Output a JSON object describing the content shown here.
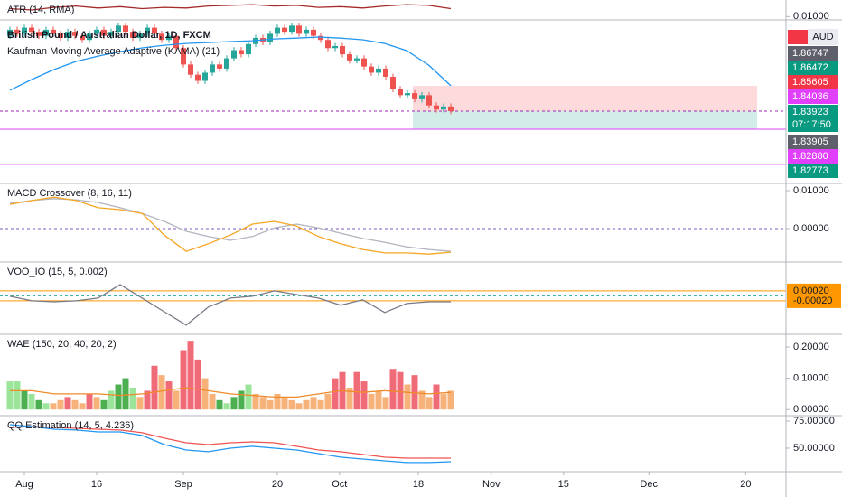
{
  "chart_data": [
    {
      "type": "line",
      "title": "ATR (14, RMA)",
      "ylim": [
        0.0095,
        0.0125
      ],
      "yticks": [
        {
          "value": 0.01,
          "label": "0.01000"
        }
      ],
      "series": [
        {
          "color": "#a52a2a",
          "values": [
            0.0112,
            0.011,
            0.0114,
            0.0116,
            0.0113,
            0.0115,
            0.0112,
            0.0114,
            0.0113,
            0.0116,
            0.0117,
            0.0118,
            0.0116,
            0.0117,
            0.0114,
            0.0115,
            0.0113,
            0.0116,
            0.0118,
            0.0117,
            0.0112
          ]
        }
      ]
    },
    {
      "type": "candlestick",
      "title": "British Pound / Australian Dollar, 1D, FXCM",
      "ylim": [
        1.8039,
        1.8838
      ],
      "up_color": "#26a69a",
      "down_color": "#ef5350",
      "open": [
        1.876,
        1.879,
        1.877,
        1.88,
        1.878,
        1.876,
        1.879,
        1.877,
        1.875,
        1.878,
        1.876,
        1.874,
        1.877,
        1.879,
        1.876,
        1.878,
        1.881,
        1.878,
        1.875,
        1.877,
        1.88,
        1.877,
        1.874,
        1.876,
        1.87,
        1.862,
        1.857,
        1.854,
        1.858,
        1.862,
        1.86,
        1.865,
        1.869,
        1.867,
        1.872,
        1.875,
        1.873,
        1.877,
        1.88,
        1.878,
        1.881,
        1.877,
        1.879,
        1.876,
        1.874,
        1.87,
        1.871,
        1.867,
        1.864,
        1.865,
        1.861,
        1.858,
        1.86,
        1.856,
        1.85,
        1.847,
        1.848,
        1.845,
        1.847,
        1.842,
        1.84,
        1.8415
      ],
      "high": [
        1.8805,
        1.8805,
        1.8815,
        1.8815,
        1.8795,
        1.8805,
        1.8805,
        1.8785,
        1.8795,
        1.8795,
        1.8775,
        1.8785,
        1.8805,
        1.8805,
        1.8795,
        1.8825,
        1.8825,
        1.8795,
        1.8785,
        1.8815,
        1.8815,
        1.8785,
        1.8775,
        1.8775,
        1.8715,
        1.8635,
        1.8585,
        1.8595,
        1.8635,
        1.8635,
        1.8665,
        1.8705,
        1.8705,
        1.8735,
        1.8765,
        1.8765,
        1.8785,
        1.8815,
        1.8815,
        1.8825,
        1.8825,
        1.8805,
        1.8805,
        1.8775,
        1.8755,
        1.8725,
        1.8725,
        1.8685,
        1.8665,
        1.8665,
        1.8625,
        1.8615,
        1.8615,
        1.8575,
        1.8515,
        1.8495,
        1.8495,
        1.8485,
        1.8485,
        1.8435,
        1.843,
        1.843
      ],
      "low": [
        1.8745,
        1.8755,
        1.8755,
        1.8765,
        1.8745,
        1.8745,
        1.8755,
        1.8735,
        1.8735,
        1.8745,
        1.8725,
        1.8725,
        1.8755,
        1.8745,
        1.8745,
        1.8765,
        1.8765,
        1.8735,
        1.8735,
        1.8755,
        1.8755,
        1.8725,
        1.8725,
        1.8685,
        1.8605,
        1.8555,
        1.8525,
        1.8525,
        1.8565,
        1.8585,
        1.8585,
        1.8635,
        1.8655,
        1.8655,
        1.8705,
        1.8715,
        1.8715,
        1.8755,
        1.8765,
        1.8765,
        1.8755,
        1.8755,
        1.8745,
        1.8725,
        1.8685,
        1.8685,
        1.8655,
        1.8625,
        1.8625,
        1.8595,
        1.8565,
        1.8565,
        1.8545,
        1.8485,
        1.8455,
        1.8455,
        1.8435,
        1.8435,
        1.8405,
        1.8385,
        1.8385,
        1.8377
      ],
      "close": [
        1.879,
        1.877,
        1.88,
        1.878,
        1.876,
        1.879,
        1.877,
        1.875,
        1.878,
        1.876,
        1.874,
        1.877,
        1.879,
        1.876,
        1.878,
        1.881,
        1.878,
        1.875,
        1.877,
        1.88,
        1.877,
        1.874,
        1.876,
        1.87,
        1.862,
        1.857,
        1.854,
        1.858,
        1.862,
        1.86,
        1.865,
        1.869,
        1.867,
        1.872,
        1.875,
        1.873,
        1.877,
        1.88,
        1.878,
        1.881,
        1.877,
        1.879,
        1.876,
        1.874,
        1.87,
        1.871,
        1.867,
        1.864,
        1.865,
        1.861,
        1.858,
        1.86,
        1.856,
        1.85,
        1.847,
        1.848,
        1.845,
        1.847,
        1.842,
        1.84,
        1.8415,
        1.8392
      ],
      "series": [
        {
          "name": "Kaufman Moving Average Adaptive (KAMA) (21)",
          "color": "#2196f3",
          "values": [
            1.8494,
            1.8547,
            1.8595,
            1.8635,
            1.8661,
            1.8683,
            1.8701,
            1.8714,
            1.8723,
            1.8727,
            1.8732,
            1.8736,
            1.8745,
            1.8749,
            1.8754,
            1.8749,
            1.8741,
            1.8723,
            1.8688,
            1.8617,
            1.8516
          ]
        }
      ],
      "hlines": [
        {
          "value": 1.83923,
          "color": "#9c27b0",
          "dashed": true
        },
        {
          "value": 1.8304,
          "color": "#e040fb",
          "dashed": false
        },
        {
          "value": 1.8132,
          "color": "#e040fb",
          "dashed": false
        }
      ],
      "position": {
        "stop": 1.8516,
        "entry": 1.83923,
        "target": 1.8304
      },
      "currency": "AUD",
      "countdown": "07:17:50",
      "price_labels": [
        {
          "value": 1.86747,
          "label": "1.86747",
          "color": "#5d606b"
        },
        {
          "value": 1.86472,
          "label": "1.86472",
          "color": "#089981"
        },
        {
          "value": 1.85605,
          "label": "1.85605",
          "color": "#f23645"
        },
        {
          "value": 1.84036,
          "label": "1.84036",
          "color": "#e040fb"
        },
        {
          "value": 1.83923,
          "label": "1.83923",
          "color": "#089981"
        },
        {
          "value": 1.83905,
          "label": "1.83905",
          "color": "#5d606b"
        },
        {
          "value": 1.8288,
          "label": "1.82880",
          "color": "#e040fb"
        },
        {
          "value": 1.82773,
          "label": "1.82773",
          "color": "#089981"
        }
      ],
      "xticks": [
        {
          "value": 2,
          "label": "Aug"
        },
        {
          "value": 12,
          "label": "16"
        },
        {
          "value": 24,
          "label": "Sep"
        },
        {
          "value": 37,
          "label": "20"
        },
        {
          "value": 45.6,
          "label": "Oct"
        },
        {
          "value": 56.5,
          "label": "18"
        },
        {
          "value": 66.6,
          "label": "Nov"
        },
        {
          "value": 76.6,
          "label": "15"
        },
        {
          "value": 88.4,
          "label": "Dec"
        },
        {
          "value": 101.8,
          "label": "20"
        }
      ]
    },
    {
      "type": "line",
      "title": "MACD Crossover (8, 16, 11)",
      "ylim": [
        -0.0088,
        0.0119
      ],
      "yticks": [
        {
          "value": 0.01,
          "label": "0.01000"
        },
        {
          "value": 0,
          "label": "0.00000"
        }
      ],
      "hlines": [
        {
          "value": 0,
          "color": "#7e57c2",
          "dashed": true
        }
      ],
      "series": [
        {
          "color": "#b2b5be",
          "values": [
            0.0067,
            0.0074,
            0.0079,
            0.0076,
            0.0069,
            0.0055,
            0.004,
            0.0019,
            -0.0007,
            -0.0021,
            -0.0031,
            -0.0021,
            0.0002,
            0.0012,
            0.0002,
            -0.0012,
            -0.0026,
            -0.0036,
            -0.0048,
            -0.0055,
            -0.006
          ]
        },
        {
          "color": "#f5a623",
          "values": [
            0.0064,
            0.0074,
            0.0083,
            0.0074,
            0.0055,
            0.005,
            0.004,
            -0.0017,
            -0.006,
            -0.004,
            -0.0017,
            0.0012,
            0.0019,
            0.0007,
            -0.0021,
            -0.004,
            -0.0055,
            -0.0064,
            -0.0064,
            -0.0067,
            -0.0062
          ]
        }
      ]
    },
    {
      "type": "line",
      "title": "VOO_IO (15, 5, 0.002)",
      "ylim": [
        -0.00155,
        0.00136
      ],
      "tick_color": "#ff9800",
      "yticks": [
        {
          "value": 0.0002,
          "label": "0.00020"
        },
        {
          "value": -0.0002,
          "label": "-0.00020"
        }
      ],
      "hlines": [
        {
          "value": 0,
          "color": "#26a69a",
          "dashed": true
        }
      ],
      "series": [
        {
          "color": "#787b86",
          "values": [
            -2e-05,
            -0.0002,
            -0.00024,
            -0.0002,
            -9e-05,
            0.00045,
            -9e-05,
            -0.00064,
            -0.00118,
            -0.00045,
            -9e-05,
            -2e-05,
            0.0002,
            5e-05,
            -9e-05,
            -0.00038,
            -0.00016,
            -0.00067,
            -0.00031,
            -0.00024,
            -0.00024
          ]
        }
      ]
    },
    {
      "type": "bar",
      "title": "WAE (150, 20, 40, 20, 2)",
      "ylim": [
        -0.0197,
        0.2406
      ],
      "yticks": [
        {
          "value": 0.2,
          "label": "0.20000"
        },
        {
          "value": 0.1,
          "label": "0.10000"
        },
        {
          "value": 0,
          "label": "0.00000"
        }
      ],
      "values": [
        0.09,
        0.09,
        0.06,
        0.05,
        0.03,
        0.02,
        0.02,
        0.03,
        0.04,
        0.03,
        0.02,
        0.05,
        0.04,
        0.03,
        0.06,
        0.08,
        0.1,
        0.07,
        0.04,
        0.06,
        0.14,
        0.11,
        0.09,
        0.06,
        0.19,
        0.22,
        0.16,
        0.1,
        0.05,
        0.03,
        0.02,
        0.04,
        0.06,
        0.08,
        0.05,
        0.04,
        0.03,
        0.05,
        0.04,
        0.03,
        0.02,
        0.03,
        0.04,
        0.03,
        0.05,
        0.1,
        0.12,
        0.07,
        0.12,
        0.09,
        0.05,
        0.06,
        0.04,
        0.13,
        0.12,
        0.08,
        0.11,
        0.06,
        0.04,
        0.08,
        0.05,
        0.06
      ],
      "bar_colors": [
        "#9be59b",
        "#9be59b",
        "#4caf50",
        "#9be59b",
        "#4caf50",
        "#9be59b",
        "#f7b27a",
        "#f7b27a",
        "#f06b78",
        "#f7b27a",
        "#f7b27a",
        "#f06b78",
        "#f7b27a",
        "#4caf50",
        "#9be59b",
        "#4caf50",
        "#4caf50",
        "#9be59b",
        "#f7b27a",
        "#f06b78",
        "#f06b78",
        "#f7b27a",
        "#f06b78",
        "#f7b27a",
        "#f06b78",
        "#f06b78",
        "#f06b78",
        "#f7b27a",
        "#f7b27a",
        "#4caf50",
        "#9be59b",
        "#4caf50",
        "#4caf50",
        "#9be59b",
        "#f7b27a",
        "#f7b27a",
        "#f7b27a",
        "#f7b27a",
        "#f7b27a",
        "#f7b27a",
        "#f7b27a",
        "#f7b27a",
        "#f7b27a",
        "#f7b27a",
        "#f7b27a",
        "#f06b78",
        "#f06b78",
        "#f7b27a",
        "#f06b78",
        "#f06b78",
        "#f7b27a",
        "#f7b27a",
        "#f7b27a",
        "#f06b78",
        "#f06b78",
        "#f7b27a",
        "#f06b78",
        "#f7b27a",
        "#f7b27a",
        "#f06b78",
        "#f7b27a",
        "#f7b27a"
      ],
      "series": [
        {
          "color": "#ef8a2a",
          "values": [
            0.06,
            0.06,
            0.05,
            0.05,
            0.05,
            0.045,
            0.05,
            0.06,
            0.07,
            0.06,
            0.05,
            0.045,
            0.04,
            0.04,
            0.05,
            0.06,
            0.055,
            0.06,
            0.055,
            0.05,
            0.055
          ]
        }
      ]
    },
    {
      "type": "line",
      "title": "QQ Estimation (14, 5, 4.236)",
      "ylim": [
        28.3,
        80
      ],
      "yticks": [
        {
          "value": 75,
          "label": "75.00000"
        },
        {
          "value": 50,
          "label": "50.00000"
        }
      ],
      "series": [
        {
          "color": "#ef5350",
          "values": [
            69.2,
            70,
            69.2,
            68.3,
            67.5,
            66.7,
            64.2,
            59.2,
            55,
            53.3,
            55,
            55.8,
            55,
            51.7,
            48.3,
            46.7,
            44.2,
            41.7,
            40.8,
            40.8,
            40.8
          ]
        },
        {
          "color": "#2196f3",
          "values": [
            71.7,
            70,
            67.5,
            66.7,
            65,
            65,
            61.7,
            53.3,
            48.3,
            46.7,
            50,
            51.7,
            50,
            48.3,
            45,
            41.7,
            40,
            38.3,
            36.7,
            36.7,
            37.5
          ]
        }
      ]
    }
  ]
}
